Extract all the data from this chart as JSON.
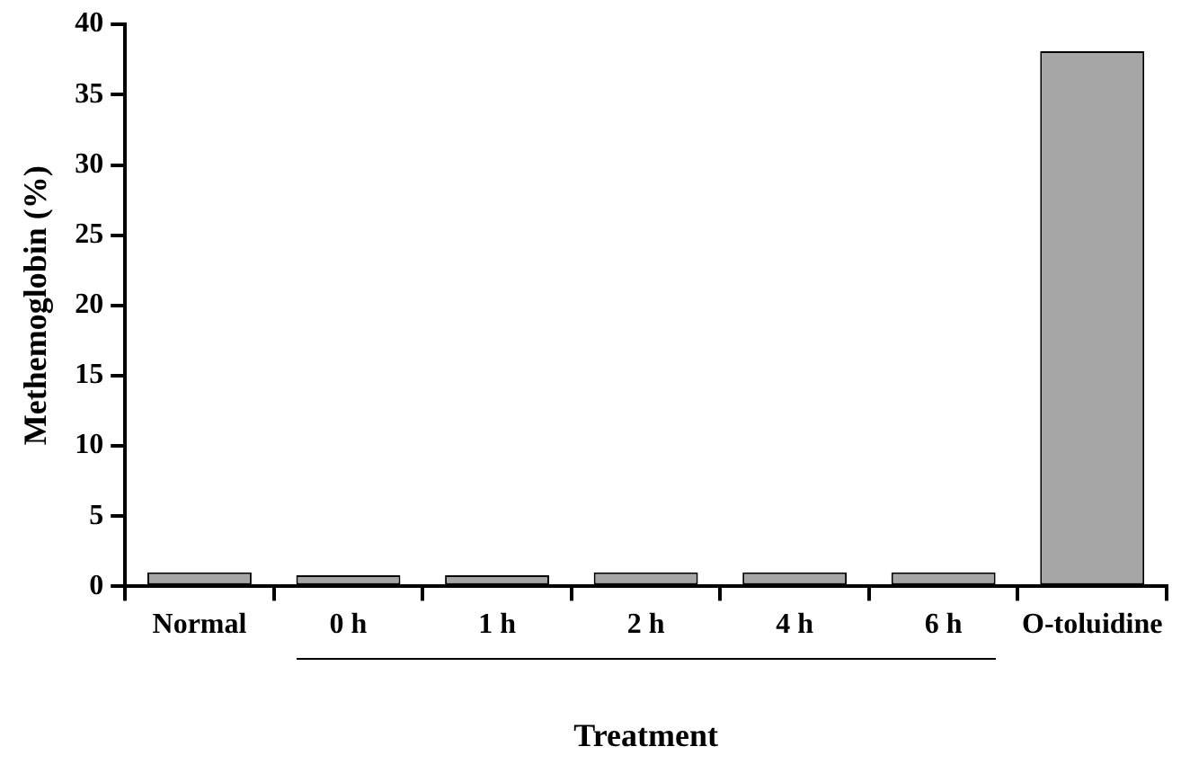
{
  "chart_data": {
    "type": "bar",
    "xlabel": "Treatment",
    "ylabel": "Methemoglobin (%)",
    "categories": [
      "Normal",
      "0 h",
      "1 h",
      "2 h",
      "4 h",
      "6 h",
      "O-toluidine"
    ],
    "values": [
      1.0,
      0.8,
      0.8,
      1.0,
      1.0,
      1.0,
      38.1
    ],
    "color": "#a6a6a6",
    "ylim": [
      0,
      40
    ],
    "yticks": [
      0,
      5,
      10,
      15,
      20,
      25,
      30,
      35,
      40
    ],
    "grid": false,
    "legend": false
  }
}
